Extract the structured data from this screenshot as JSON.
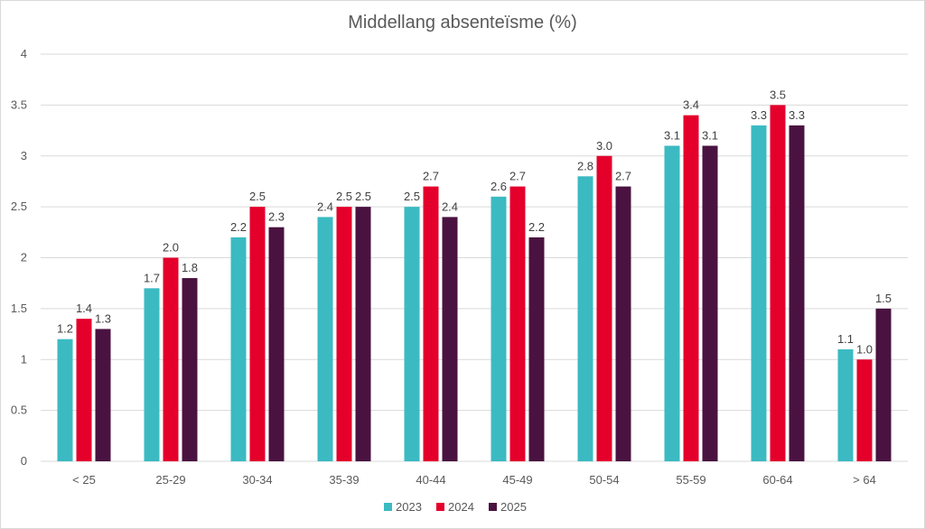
{
  "chart_data": {
    "type": "bar",
    "title": "Middellang absenteïsme (%)",
    "categories": [
      "< 25",
      "25-29",
      "30-34",
      "35-39",
      "40-44",
      "45-49",
      "50-54",
      "55-59",
      "60-64",
      "> 64"
    ],
    "series": [
      {
        "name": "2023",
        "color": "#3BBAC2",
        "values": [
          1.2,
          1.7,
          2.2,
          2.4,
          2.5,
          2.6,
          2.8,
          3.1,
          3.3,
          1.1
        ],
        "labels": [
          "1.2",
          "1.7",
          "2.2",
          "2.4",
          "2.5",
          "2.6",
          "2.8",
          "3.1",
          "3.3",
          "1.1"
        ]
      },
      {
        "name": "2024",
        "color": "#E4002B",
        "values": [
          1.4,
          2.0,
          2.5,
          2.5,
          2.7,
          2.7,
          3.0,
          3.4,
          3.5,
          1.0
        ],
        "labels": [
          "1.4",
          "2.0",
          "2.5",
          "2.5",
          "2.7",
          "2.7",
          "3.0",
          "3.4",
          "3.5",
          "1.0"
        ]
      },
      {
        "name": "2025",
        "color": "#4A1240",
        "values": [
          1.3,
          1.8,
          2.3,
          2.5,
          2.4,
          2.2,
          2.7,
          3.1,
          3.3,
          1.5
        ],
        "labels": [
          "1.3",
          "1.8",
          "2.3",
          "2.5",
          "2.4",
          "2.2",
          "2.7",
          "3.1",
          "3.3",
          "1.5"
        ]
      }
    ],
    "ylim": [
      0,
      4
    ],
    "yticks": [
      0,
      0.5,
      1,
      1.5,
      2,
      2.5,
      3,
      3.5,
      4
    ],
    "ytick_labels": [
      "0",
      "0.5",
      "1",
      "1.5",
      "2",
      "2.5",
      "3",
      "3.5",
      "4"
    ],
    "grid": true,
    "legend": "bottom",
    "xlabel": "",
    "ylabel": ""
  }
}
